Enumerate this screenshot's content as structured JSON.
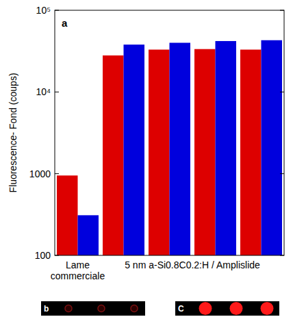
{
  "chart_data": {
    "type": "bar",
    "y_label": "Fluorescence- Fond (coups)",
    "annotations": [
      "a",
      "b",
      "C"
    ],
    "categories": [
      "Lame commerciale",
      "5 nm a-Si0.8C0.2:H / Amplislide",
      null,
      null,
      null
    ],
    "series": [
      {
        "color": "#dd0000",
        "values": [
          950,
          28000,
          33000,
          33500,
          33000
        ]
      },
      {
        "color": "#0000dd",
        "values": [
          310,
          38000,
          40000,
          42000,
          43000
        ]
      }
    ],
    "ylim": [
      100,
      100000
    ],
    "yticks": [
      100,
      1000,
      {
        "value": 10000,
        "label": "10⁴"
      },
      {
        "value": 100000,
        "label": "10⁵"
      }
    ],
    "log": "y"
  }
}
